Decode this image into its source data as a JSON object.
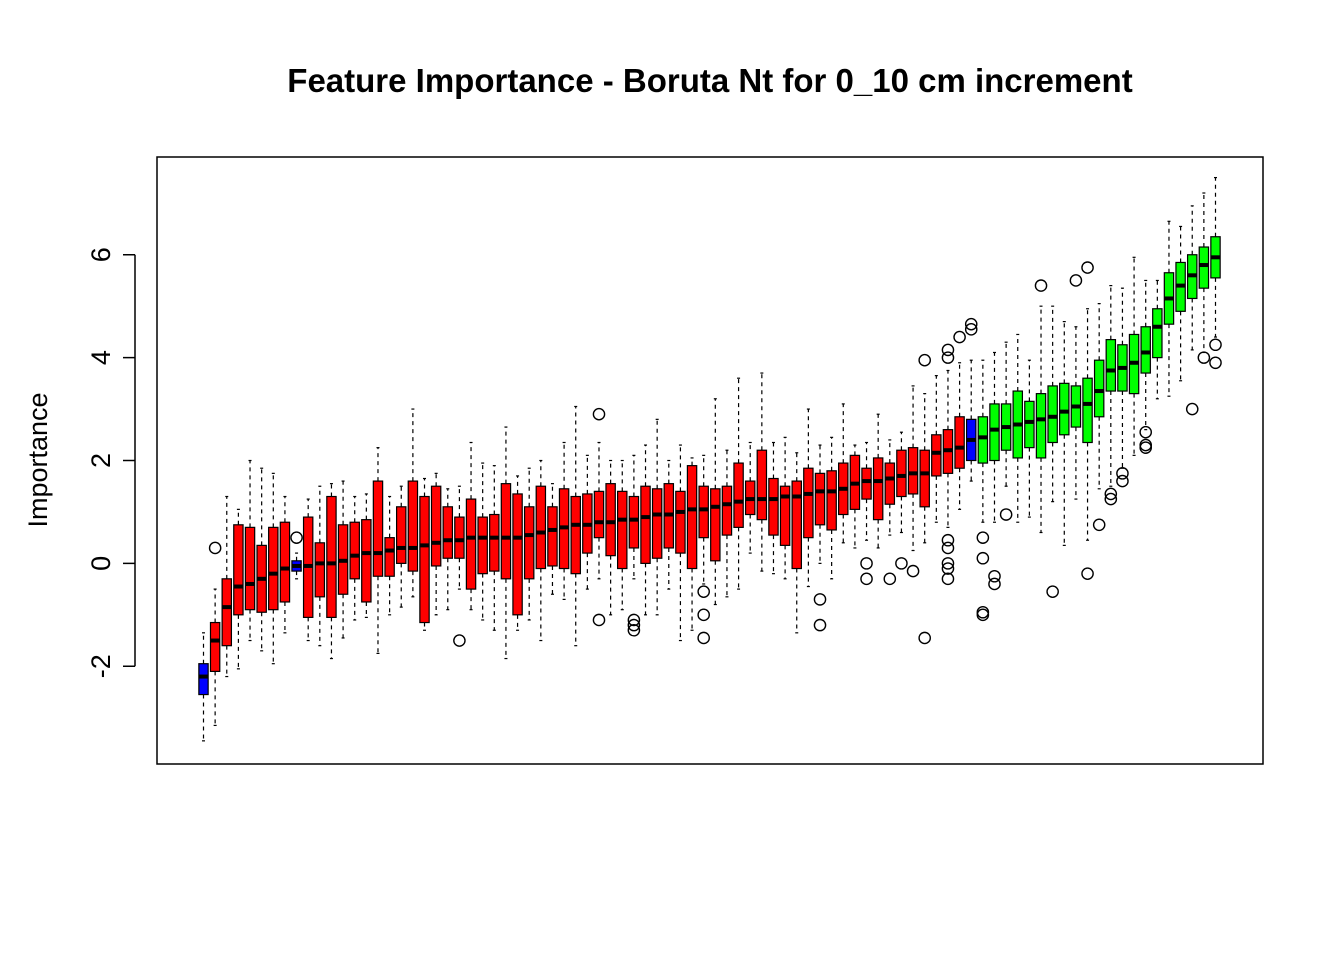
{
  "chart_data": {
    "type": "boxplot",
    "title": "Feature Importance - Boruta Nt for 0_10 cm increment",
    "xlabel": "",
    "ylabel": "Importance",
    "ylim": [
      -3.9,
      7.9
    ],
    "yticks": [
      -2,
      0,
      2,
      4,
      6
    ],
    "ytick_labels": [
      "-2",
      "0",
      "2",
      "4",
      "6"
    ],
    "grid": false,
    "legend": "none",
    "status_colors": {
      "Shadow": "#0000ff",
      "Rejected": "#ff0000",
      "Confirmed": "#00ff00"
    },
    "boxes": [
      {
        "status": "Shadow",
        "median": -2.2,
        "q1": -2.55,
        "q3": -1.95,
        "whislo": -3.45,
        "whishi": -1.35,
        "outliers": []
      },
      {
        "status": "Rejected",
        "median": -1.5,
        "q1": -2.1,
        "q3": -1.15,
        "whislo": -3.15,
        "whishi": -0.5,
        "outliers": [
          0.3
        ]
      },
      {
        "status": "Rejected",
        "median": -0.85,
        "q1": -1.6,
        "q3": -0.3,
        "whislo": -2.2,
        "whishi": 1.3,
        "outliers": []
      },
      {
        "status": "Rejected",
        "median": -0.45,
        "q1": -1.0,
        "q3": 0.75,
        "whislo": -2.05,
        "whishi": 1.05,
        "outliers": []
      },
      {
        "status": "Rejected",
        "median": -0.4,
        "q1": -0.9,
        "q3": 0.7,
        "whislo": -1.5,
        "whishi": 2.0,
        "outliers": []
      },
      {
        "status": "Rejected",
        "median": -0.3,
        "q1": -0.95,
        "q3": 0.35,
        "whislo": -1.7,
        "whishi": 1.85,
        "outliers": []
      },
      {
        "status": "Rejected",
        "median": -0.2,
        "q1": -0.9,
        "q3": 0.7,
        "whislo": -1.95,
        "whishi": 1.75,
        "outliers": []
      },
      {
        "status": "Rejected",
        "median": -0.1,
        "q1": -0.75,
        "q3": 0.8,
        "whislo": -1.35,
        "whishi": 1.3,
        "outliers": []
      },
      {
        "status": "Shadow",
        "median": -0.05,
        "q1": -0.15,
        "q3": 0.05,
        "whislo": -0.3,
        "whishi": 0.2,
        "outliers": [
          0.5
        ]
      },
      {
        "status": "Rejected",
        "median": -0.05,
        "q1": -1.05,
        "q3": 0.9,
        "whislo": -1.5,
        "whishi": 1.25,
        "outliers": []
      },
      {
        "status": "Rejected",
        "median": 0.0,
        "q1": -0.65,
        "q3": 0.4,
        "whislo": -1.6,
        "whishi": 1.5,
        "outliers": []
      },
      {
        "status": "Rejected",
        "median": 0.0,
        "q1": -1.05,
        "q3": 1.3,
        "whislo": -1.85,
        "whishi": 1.55,
        "outliers": []
      },
      {
        "status": "Rejected",
        "median": 0.05,
        "q1": -0.6,
        "q3": 0.75,
        "whislo": -1.45,
        "whishi": 1.6,
        "outliers": []
      },
      {
        "status": "Rejected",
        "median": 0.15,
        "q1": -0.3,
        "q3": 0.8,
        "whislo": -1.1,
        "whishi": 1.3,
        "outliers": []
      },
      {
        "status": "Rejected",
        "median": 0.2,
        "q1": -0.75,
        "q3": 0.85,
        "whislo": -1.05,
        "whishi": 1.35,
        "outliers": []
      },
      {
        "status": "Rejected",
        "median": 0.2,
        "q1": -0.25,
        "q3": 1.6,
        "whislo": -1.75,
        "whishi": 2.25,
        "outliers": []
      },
      {
        "status": "Rejected",
        "median": 0.25,
        "q1": -0.25,
        "q3": 0.5,
        "whislo": -1.0,
        "whishi": 1.3,
        "outliers": []
      },
      {
        "status": "Rejected",
        "median": 0.3,
        "q1": 0.0,
        "q3": 1.1,
        "whislo": -0.85,
        "whishi": 1.5,
        "outliers": []
      },
      {
        "status": "Rejected",
        "median": 0.3,
        "q1": -0.15,
        "q3": 1.6,
        "whislo": -0.65,
        "whishi": 3.0,
        "outliers": []
      },
      {
        "status": "Rejected",
        "median": 0.35,
        "q1": -1.15,
        "q3": 1.3,
        "whislo": -1.3,
        "whishi": 1.65,
        "outliers": []
      },
      {
        "status": "Rejected",
        "median": 0.4,
        "q1": -0.05,
        "q3": 1.5,
        "whislo": -1.0,
        "whishi": 1.75,
        "outliers": []
      },
      {
        "status": "Rejected",
        "median": 0.45,
        "q1": 0.1,
        "q3": 1.1,
        "whislo": -0.9,
        "whishi": 1.45,
        "outliers": []
      },
      {
        "status": "Rejected",
        "median": 0.45,
        "q1": 0.1,
        "q3": 0.9,
        "whislo": -0.5,
        "whishi": 1.5,
        "outliers": [
          -1.5
        ]
      },
      {
        "status": "Rejected",
        "median": 0.5,
        "q1": -0.5,
        "q3": 1.25,
        "whislo": -0.9,
        "whishi": 2.35,
        "outliers": []
      },
      {
        "status": "Rejected",
        "median": 0.5,
        "q1": -0.2,
        "q3": 0.9,
        "whislo": -1.1,
        "whishi": 1.95,
        "outliers": []
      },
      {
        "status": "Rejected",
        "median": 0.5,
        "q1": -0.15,
        "q3": 0.95,
        "whislo": -1.3,
        "whishi": 1.9,
        "outliers": []
      },
      {
        "status": "Rejected",
        "median": 0.5,
        "q1": -0.3,
        "q3": 1.55,
        "whislo": -1.85,
        "whishi": 2.65,
        "outliers": []
      },
      {
        "status": "Rejected",
        "median": 0.5,
        "q1": -1.0,
        "q3": 1.35,
        "whislo": -1.3,
        "whishi": 1.7,
        "outliers": []
      },
      {
        "status": "Rejected",
        "median": 0.55,
        "q1": -0.3,
        "q3": 1.1,
        "whislo": -1.1,
        "whishi": 1.85,
        "outliers": []
      },
      {
        "status": "Rejected",
        "median": 0.6,
        "q1": -0.1,
        "q3": 1.5,
        "whislo": -1.5,
        "whishi": 2.0,
        "outliers": []
      },
      {
        "status": "Rejected",
        "median": 0.65,
        "q1": -0.05,
        "q3": 1.1,
        "whislo": -0.6,
        "whishi": 1.55,
        "outliers": []
      },
      {
        "status": "Rejected",
        "median": 0.7,
        "q1": -0.1,
        "q3": 1.45,
        "whislo": -0.7,
        "whishi": 2.35,
        "outliers": []
      },
      {
        "status": "Rejected",
        "median": 0.75,
        "q1": -0.2,
        "q3": 1.3,
        "whislo": -1.6,
        "whishi": 3.05,
        "outliers": []
      },
      {
        "status": "Rejected",
        "median": 0.75,
        "q1": 0.2,
        "q3": 1.35,
        "whislo": -0.5,
        "whishi": 2.1,
        "outliers": []
      },
      {
        "status": "Rejected",
        "median": 0.8,
        "q1": 0.5,
        "q3": 1.4,
        "whislo": -0.3,
        "whishi": 2.35,
        "outliers": [
          2.9,
          -1.1
        ]
      },
      {
        "status": "Rejected",
        "median": 0.8,
        "q1": 0.15,
        "q3": 1.55,
        "whislo": -1.0,
        "whishi": 2.0,
        "outliers": []
      },
      {
        "status": "Rejected",
        "median": 0.85,
        "q1": -0.1,
        "q3": 1.4,
        "whislo": -0.9,
        "whishi": 2.0,
        "outliers": []
      },
      {
        "status": "Rejected",
        "median": 0.85,
        "q1": 0.3,
        "q3": 1.3,
        "whislo": -0.3,
        "whishi": 2.1,
        "outliers": [
          -1.1,
          -1.2,
          -1.3
        ]
      },
      {
        "status": "Rejected",
        "median": 0.9,
        "q1": 0.0,
        "q3": 1.5,
        "whislo": -1.0,
        "whishi": 2.3,
        "outliers": []
      },
      {
        "status": "Rejected",
        "median": 0.95,
        "q1": 0.1,
        "q3": 1.45,
        "whislo": -1.0,
        "whishi": 2.8,
        "outliers": []
      },
      {
        "status": "Rejected",
        "median": 0.95,
        "q1": 0.3,
        "q3": 1.55,
        "whislo": -0.5,
        "whishi": 2.0,
        "outliers": []
      },
      {
        "status": "Rejected",
        "median": 1.0,
        "q1": 0.2,
        "q3": 1.4,
        "whislo": -1.5,
        "whishi": 2.3,
        "outliers": []
      },
      {
        "status": "Rejected",
        "median": 1.05,
        "q1": -0.1,
        "q3": 1.9,
        "whislo": -1.3,
        "whishi": 2.05,
        "outliers": []
      },
      {
        "status": "Rejected",
        "median": 1.05,
        "q1": 0.5,
        "q3": 1.5,
        "whislo": -0.4,
        "whishi": 2.1,
        "outliers": [
          -0.55,
          -1.0,
          -1.45
        ]
      },
      {
        "status": "Rejected",
        "median": 1.1,
        "q1": 0.05,
        "q3": 1.45,
        "whislo": -0.8,
        "whishi": 3.2,
        "outliers": []
      },
      {
        "status": "Rejected",
        "median": 1.15,
        "q1": 0.55,
        "q3": 1.5,
        "whislo": -0.65,
        "whishi": 2.2,
        "outliers": []
      },
      {
        "status": "Rejected",
        "median": 1.2,
        "q1": 0.7,
        "q3": 1.95,
        "whislo": -0.5,
        "whishi": 3.6,
        "outliers": []
      },
      {
        "status": "Rejected",
        "median": 1.25,
        "q1": 0.95,
        "q3": 1.6,
        "whislo": 0.2,
        "whishi": 2.35,
        "outliers": []
      },
      {
        "status": "Rejected",
        "median": 1.25,
        "q1": 0.85,
        "q3": 2.2,
        "whislo": -0.15,
        "whishi": 3.7,
        "outliers": []
      },
      {
        "status": "Rejected",
        "median": 1.25,
        "q1": 0.55,
        "q3": 1.65,
        "whislo": -0.2,
        "whishi": 2.35,
        "outliers": []
      },
      {
        "status": "Rejected",
        "median": 1.3,
        "q1": 0.35,
        "q3": 1.5,
        "whislo": -0.3,
        "whishi": 2.45,
        "outliers": []
      },
      {
        "status": "Rejected",
        "median": 1.3,
        "q1": -0.1,
        "q3": 1.6,
        "whislo": -1.35,
        "whishi": 2.15,
        "outliers": []
      },
      {
        "status": "Rejected",
        "median": 1.35,
        "q1": 0.5,
        "q3": 1.85,
        "whislo": -0.45,
        "whishi": 3.0,
        "outliers": []
      },
      {
        "status": "Rejected",
        "median": 1.4,
        "q1": 0.75,
        "q3": 1.75,
        "whislo": 0.0,
        "whishi": 2.3,
        "outliers": [
          -0.7,
          -1.2
        ]
      },
      {
        "status": "Rejected",
        "median": 1.4,
        "q1": 0.65,
        "q3": 1.8,
        "whislo": -0.3,
        "whishi": 2.45,
        "outliers": []
      },
      {
        "status": "Rejected",
        "median": 1.45,
        "q1": 0.95,
        "q3": 1.95,
        "whislo": 0.4,
        "whishi": 3.1,
        "outliers": []
      },
      {
        "status": "Rejected",
        "median": 1.55,
        "q1": 1.05,
        "q3": 2.1,
        "whislo": 0.3,
        "whishi": 2.3,
        "outliers": []
      },
      {
        "status": "Rejected",
        "median": 1.6,
        "q1": 1.25,
        "q3": 1.85,
        "whislo": 0.45,
        "whishi": 2.35,
        "outliers": [
          0.0,
          -0.3
        ]
      },
      {
        "status": "Rejected",
        "median": 1.6,
        "q1": 0.85,
        "q3": 2.05,
        "whislo": 0.3,
        "whishi": 2.9,
        "outliers": []
      },
      {
        "status": "Rejected",
        "median": 1.65,
        "q1": 1.15,
        "q3": 1.95,
        "whislo": 0.55,
        "whishi": 2.4,
        "outliers": [
          -0.3
        ]
      },
      {
        "status": "Rejected",
        "median": 1.7,
        "q1": 1.3,
        "q3": 2.2,
        "whislo": 0.6,
        "whishi": 2.55,
        "outliers": [
          0.0
        ]
      },
      {
        "status": "Rejected",
        "median": 1.75,
        "q1": 1.35,
        "q3": 2.25,
        "whislo": 0.25,
        "whishi": 3.45,
        "outliers": [
          -0.15
        ]
      },
      {
        "status": "Rejected",
        "median": 1.75,
        "q1": 1.1,
        "q3": 2.2,
        "whislo": 0.4,
        "whishi": 3.3,
        "outliers": [
          3.95,
          -1.45
        ]
      },
      {
        "status": "Rejected",
        "median": 2.15,
        "q1": 1.7,
        "q3": 2.5,
        "whislo": 0.8,
        "whishi": 3.65,
        "outliers": []
      },
      {
        "status": "Rejected",
        "median": 2.2,
        "q1": 1.75,
        "q3": 2.6,
        "whislo": 0.7,
        "whishi": 3.75,
        "outliers": [
          4.0,
          4.15,
          0.45,
          0.3,
          0.0,
          -0.1,
          -0.3
        ]
      },
      {
        "status": "Rejected",
        "median": 2.25,
        "q1": 1.85,
        "q3": 2.85,
        "whislo": 1.05,
        "whishi": 3.9,
        "outliers": [
          4.4
        ]
      },
      {
        "status": "Shadow",
        "median": 2.4,
        "q1": 2.0,
        "q3": 2.8,
        "whislo": 1.6,
        "whishi": 3.95,
        "outliers": [
          4.55,
          4.65
        ]
      },
      {
        "status": "Confirmed",
        "median": 2.45,
        "q1": 1.95,
        "q3": 2.85,
        "whislo": 0.8,
        "whishi": 3.95,
        "outliers": [
          0.5,
          0.1,
          -0.95,
          -1.0
        ]
      },
      {
        "status": "Confirmed",
        "median": 2.6,
        "q1": 2.0,
        "q3": 3.1,
        "whislo": 0.8,
        "whishi": 4.1,
        "outliers": [
          -0.25,
          -0.4
        ]
      },
      {
        "status": "Confirmed",
        "median": 2.65,
        "q1": 2.2,
        "q3": 3.1,
        "whislo": 1.5,
        "whishi": 4.3,
        "outliers": [
          0.95
        ]
      },
      {
        "status": "Confirmed",
        "median": 2.7,
        "q1": 2.05,
        "q3": 3.35,
        "whislo": 0.8,
        "whishi": 4.45,
        "outliers": []
      },
      {
        "status": "Confirmed",
        "median": 2.75,
        "q1": 2.25,
        "q3": 3.15,
        "whislo": 0.9,
        "whishi": 3.95,
        "outliers": []
      },
      {
        "status": "Confirmed",
        "median": 2.8,
        "q1": 2.05,
        "q3": 3.3,
        "whislo": 0.6,
        "whishi": 5.0,
        "outliers": [
          5.4
        ]
      },
      {
        "status": "Confirmed",
        "median": 2.85,
        "q1": 2.35,
        "q3": 3.45,
        "whislo": 1.2,
        "whishi": 5.0,
        "outliers": [
          -0.55
        ]
      },
      {
        "status": "Confirmed",
        "median": 2.95,
        "q1": 2.5,
        "q3": 3.5,
        "whislo": 0.35,
        "whishi": 4.7,
        "outliers": []
      },
      {
        "status": "Confirmed",
        "median": 3.05,
        "q1": 2.65,
        "q3": 3.45,
        "whislo": 1.25,
        "whishi": 4.6,
        "outliers": [
          5.5
        ]
      },
      {
        "status": "Confirmed",
        "median": 3.1,
        "q1": 2.35,
        "q3": 3.6,
        "whislo": 0.45,
        "whishi": 4.95,
        "outliers": [
          5.75,
          -0.2
        ]
      },
      {
        "status": "Confirmed",
        "median": 3.35,
        "q1": 2.85,
        "q3": 3.95,
        "whislo": 1.45,
        "whishi": 5.05,
        "outliers": [
          0.75
        ]
      },
      {
        "status": "Confirmed",
        "median": 3.75,
        "q1": 3.35,
        "q3": 4.35,
        "whislo": 1.5,
        "whishi": 5.4,
        "outliers": [
          1.25,
          1.35
        ]
      },
      {
        "status": "Confirmed",
        "median": 3.8,
        "q1": 3.35,
        "q3": 4.25,
        "whislo": 1.85,
        "whishi": 5.35,
        "outliers": [
          1.6,
          1.75
        ]
      },
      {
        "status": "Confirmed",
        "median": 3.9,
        "q1": 3.3,
        "q3": 4.45,
        "whislo": 2.1,
        "whishi": 5.95,
        "outliers": []
      },
      {
        "status": "Confirmed",
        "median": 4.1,
        "q1": 3.7,
        "q3": 4.6,
        "whislo": 2.6,
        "whishi": 5.5,
        "outliers": [
          2.25,
          2.3,
          2.55
        ]
      },
      {
        "status": "Confirmed",
        "median": 4.6,
        "q1": 4.0,
        "q3": 4.95,
        "whislo": 3.2,
        "whishi": 5.5,
        "outliers": []
      },
      {
        "status": "Confirmed",
        "median": 5.15,
        "q1": 4.65,
        "q3": 5.65,
        "whislo": 3.25,
        "whishi": 6.65,
        "outliers": []
      },
      {
        "status": "Confirmed",
        "median": 5.4,
        "q1": 4.9,
        "q3": 5.85,
        "whislo": 3.55,
        "whishi": 6.55,
        "outliers": []
      },
      {
        "status": "Confirmed",
        "median": 5.6,
        "q1": 5.15,
        "q3": 6.0,
        "whislo": 4.15,
        "whishi": 6.95,
        "outliers": [
          3.0
        ]
      },
      {
        "status": "Confirmed",
        "median": 5.8,
        "q1": 5.35,
        "q3": 6.15,
        "whislo": 4.1,
        "whishi": 7.2,
        "outliers": [
          4.0
        ]
      },
      {
        "status": "Confirmed",
        "median": 5.95,
        "q1": 5.55,
        "q3": 6.35,
        "whislo": 4.4,
        "whishi": 7.5,
        "outliers": [
          4.25,
          3.9
        ]
      }
    ]
  }
}
